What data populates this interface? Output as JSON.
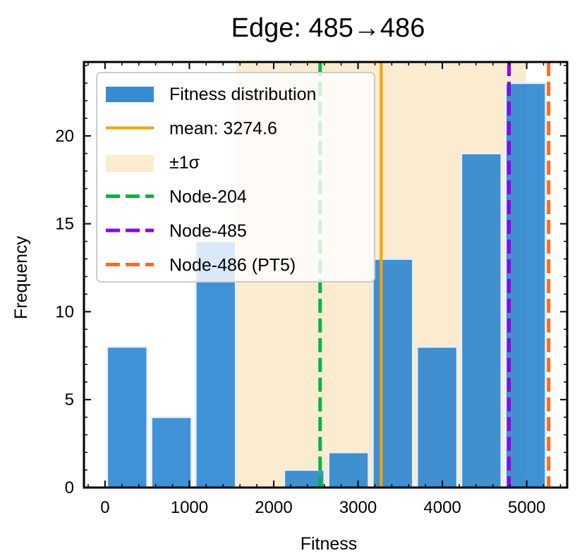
{
  "chart_data": {
    "type": "histogram",
    "title": "Edge: 485→486",
    "xlabel": "Fitness",
    "ylabel": "Frequency",
    "xlim": [
      -250,
      5480
    ],
    "ylim": [
      0,
      24.2
    ],
    "x_ticks": [
      0,
      1000,
      2000,
      3000,
      4000,
      5000
    ],
    "y_ticks": [
      0,
      5,
      10,
      15,
      20
    ],
    "bins": [
      {
        "start": 25,
        "end": 500,
        "count": 8
      },
      {
        "start": 550,
        "end": 1025,
        "count": 4
      },
      {
        "start": 1075,
        "end": 1550,
        "count": 14
      },
      {
        "start": 2125,
        "end": 2600,
        "count": 1
      },
      {
        "start": 2650,
        "end": 3125,
        "count": 2
      },
      {
        "start": 3175,
        "end": 3650,
        "count": 13
      },
      {
        "start": 3700,
        "end": 4175,
        "count": 8
      },
      {
        "start": 4225,
        "end": 4700,
        "count": 19
      },
      {
        "start": 4750,
        "end": 5225,
        "count": 23
      }
    ],
    "mean": 3274.6,
    "sigma_band": [
      1560,
      4990
    ],
    "vlines": [
      {
        "name": "Node-204",
        "x": 2550,
        "color": "#00b740",
        "style": "dashed"
      },
      {
        "name": "Node-485",
        "x": 4790,
        "color": "#8c00ec",
        "style": "dashed"
      },
      {
        "name": "Node-486 (PT5)",
        "x": 5260,
        "color": "#ff6b1a",
        "style": "dashed"
      }
    ],
    "legend": [
      {
        "label": "Fitness distribution",
        "kind": "bar"
      },
      {
        "label": "mean: 3274.6",
        "kind": "solid"
      },
      {
        "label": "±1σ",
        "kind": "band"
      },
      {
        "label": "Node-204",
        "kind": "dashed"
      },
      {
        "label": "Node-485",
        "kind": "dashed"
      },
      {
        "label": "Node-486 (PT5)",
        "kind": "dashed"
      }
    ],
    "legend_position": "upper-left",
    "colors": {
      "bar": "#1f7fcf",
      "bar_edge": "#e5f0fb",
      "mean": "#f5a20a",
      "band": "#fbebcf"
    }
  }
}
